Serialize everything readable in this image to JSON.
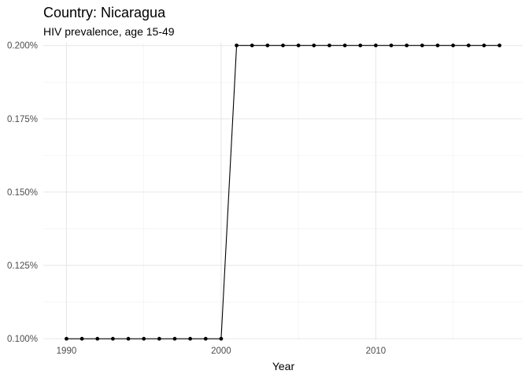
{
  "chart_data": {
    "type": "line",
    "title": "Country: Nicaragua",
    "subtitle": "HIV prevalence, age 15-49",
    "xlabel": "Year",
    "ylabel": "",
    "xlim": [
      1988.5,
      2019.5
    ],
    "ylim": [
      0.0995,
      0.201
    ],
    "x_ticks": [
      1990,
      2000,
      2010
    ],
    "x_tick_labels": [
      "1990",
      "2000",
      "2010"
    ],
    "y_ticks": [
      0.1,
      0.125,
      0.15,
      0.175,
      0.2
    ],
    "y_tick_labels": [
      "0.100%",
      "0.125%",
      "0.150%",
      "0.175%",
      "0.200%"
    ],
    "grid": true,
    "legend": "none",
    "line_color": "#000000",
    "point_color": "#000000",
    "series": [
      {
        "x": [
          1990,
          1991,
          1992,
          1993,
          1994,
          1995,
          1996,
          1997,
          1998,
          1999,
          2000,
          2001,
          2002,
          2003,
          2004,
          2005,
          2006,
          2007,
          2008,
          2009,
          2010,
          2011,
          2012,
          2013,
          2014,
          2015,
          2016,
          2017,
          2018
        ],
        "values": [
          0.1,
          0.1,
          0.1,
          0.1,
          0.1,
          0.1,
          0.1,
          0.1,
          0.1,
          0.1,
          0.1,
          0.2,
          0.2,
          0.2,
          0.2,
          0.2,
          0.2,
          0.2,
          0.2,
          0.2,
          0.2,
          0.2,
          0.2,
          0.2,
          0.2,
          0.2,
          0.2,
          0.2,
          0.2
        ]
      }
    ]
  }
}
